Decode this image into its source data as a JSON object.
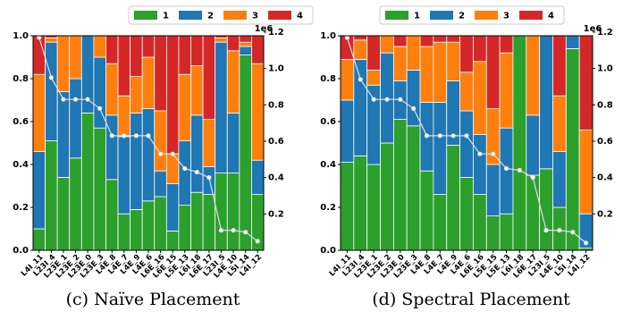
{
  "chart_data": [
    {
      "type": "stacked_bar",
      "caption": "(c) Naïve Placement",
      "y2_offset": "1e6",
      "categories": [
        "L4I_11",
        "L23I_4",
        "L23E_1",
        "L23E_2",
        "L23E_0",
        "L23E_3",
        "L4E_8",
        "L4E_7",
        "L4E_9",
        "L4E_6",
        "L6E_16",
        "L6E_15",
        "L5E_13",
        "L6I_18",
        "L6E_17",
        "L23I_5",
        "L4E_10",
        "L5I_14",
        "L4I_12"
      ],
      "series": [
        {
          "name": "1",
          "color": "#2ca02c",
          "values": [
            0.1,
            0.51,
            0.34,
            0.43,
            0.64,
            0.57,
            0.33,
            0.17,
            0.19,
            0.23,
            0.25,
            0.09,
            0.21,
            0.27,
            0.26,
            0.36,
            0.36,
            0.91,
            0.26
          ]
        },
        {
          "name": "2",
          "color": "#1f77b4",
          "values": [
            0.36,
            0.46,
            0.4,
            0.37,
            0.36,
            0.33,
            0.3,
            0.36,
            0.45,
            0.43,
            0.12,
            0.22,
            0.3,
            0.36,
            0.13,
            0.61,
            0.28,
            0.04,
            0.16
          ]
        },
        {
          "name": "3",
          "color": "#ff7f0e",
          "values": [
            0.36,
            0.02,
            0.26,
            0.2,
            0,
            0.1,
            0.24,
            0.19,
            0.17,
            0.24,
            0.28,
            0.14,
            0.31,
            0.23,
            0.22,
            0.02,
            0.29,
            0.02,
            0.45
          ]
        },
        {
          "name": "4",
          "color": "#d62728",
          "values": [
            0.18,
            0.01,
            0,
            0,
            0,
            0,
            0.13,
            0.28,
            0.19,
            0.1,
            0.35,
            0.55,
            0.18,
            0.14,
            0.39,
            0.01,
            0.07,
            0.03,
            0.13
          ]
        },
        {
          "type": "line",
          "axis": "y2",
          "color": "#e0e0e0",
          "values": [
            1.17,
            0.95,
            0.83,
            0.83,
            0.83,
            0.78,
            0.63,
            0.63,
            0.63,
            0.63,
            0.53,
            0.53,
            0.45,
            0.43,
            0.4,
            0.11,
            0.11,
            0.1,
            0.05
          ]
        }
      ],
      "ylim": [
        0,
        1
      ],
      "yticks": [
        {
          "value": 0,
          "label": "0.0"
        },
        0.2,
        0.4,
        0.6,
        0.8,
        {
          "value": 1,
          "label": "1.0"
        }
      ],
      "y2lim": [
        0,
        1.18
      ],
      "y2ticks": [
        0.2,
        0.4,
        0.6,
        0.8,
        {
          "value": 1,
          "label": "1.0"
        },
        1.2
      ]
    },
    {
      "type": "stacked_bar",
      "caption": "(d) Spectral Placement",
      "y2_offset": "1e6",
      "categories": [
        "L4I_11",
        "L23I_4",
        "L23E_1",
        "L23E_2",
        "L23E_0",
        "L23E_3",
        "L4E_8",
        "L4E_7",
        "L4E_9",
        "L4E_6",
        "L6E_16",
        "L5E_15",
        "L5E_13",
        "L6I_18",
        "L6E_17",
        "L23I_5",
        "L4E_10",
        "L5I_14",
        "L4I_12"
      ],
      "series": [
        {
          "name": "1",
          "color": "#2ca02c",
          "values": [
            0.41,
            0.44,
            0.4,
            0.5,
            0.61,
            0.58,
            0.37,
            0.26,
            0.49,
            0.34,
            0.26,
            0.16,
            0.17,
            1.0,
            0.35,
            0.38,
            0.2,
            0.94,
            0.01
          ]
        },
        {
          "name": "2",
          "color": "#1f77b4",
          "values": [
            0.29,
            0.45,
            0.37,
            0.42,
            0.18,
            0.26,
            0.32,
            0.43,
            0.3,
            0.31,
            0.28,
            0.24,
            0.4,
            0,
            0.28,
            0.62,
            0.26,
            0.06,
            0.16
          ]
        },
        {
          "name": "3",
          "color": "#ff7f0e",
          "values": [
            0.19,
            0.09,
            0.07,
            0.08,
            0.16,
            0.16,
            0.26,
            0.28,
            0.18,
            0.18,
            0.34,
            0.26,
            0.35,
            0,
            0.37,
            0,
            0.26,
            0,
            0.39
          ]
        },
        {
          "name": "4",
          "color": "#d62728",
          "values": [
            0.11,
            0.02,
            0.16,
            0,
            0.05,
            0,
            0.05,
            0.03,
            0.03,
            0.17,
            0.12,
            0.34,
            0.08,
            0,
            0,
            0,
            0.28,
            0,
            0.44
          ]
        },
        {
          "type": "line",
          "axis": "y2",
          "color": "#e0e0e0",
          "values": [
            1.17,
            0.94,
            0.83,
            0.83,
            0.83,
            0.78,
            0.63,
            0.63,
            0.63,
            0.63,
            0.53,
            0.53,
            0.45,
            0.44,
            0.4,
            0.11,
            0.11,
            0.1,
            0.04
          ]
        }
      ],
      "ylim": [
        0,
        1
      ],
      "yticks": [
        {
          "value": 0,
          "label": "0.0"
        },
        0.2,
        0.4,
        0.6,
        0.8,
        {
          "value": 1,
          "label": "1.0"
        }
      ],
      "y2lim": [
        0,
        1.18
      ],
      "y2ticks": [
        0.2,
        0.4,
        0.6,
        0.8,
        {
          "value": 1,
          "label": "1.0"
        },
        1.2
      ]
    }
  ]
}
